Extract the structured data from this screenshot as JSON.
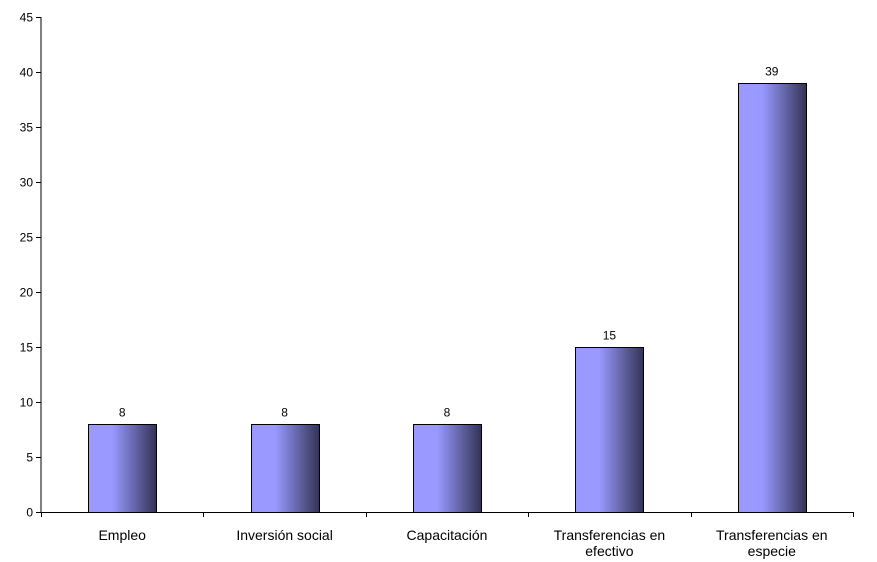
{
  "chart_data": {
    "type": "bar",
    "categories": [
      "Empleo",
      "Inversión social",
      "Capacitación",
      "Transferencias en efectivo",
      "Transferencias en especie"
    ],
    "category_lines": [
      [
        "Empleo"
      ],
      [
        "Inversión social"
      ],
      [
        "Capacitación"
      ],
      [
        "Transferencias en",
        "efectivo"
      ],
      [
        "Transferencias en",
        "especie"
      ]
    ],
    "values": [
      8,
      8,
      8,
      15,
      39
    ],
    "data_labels": [
      "8",
      "8",
      "8",
      "15",
      "39"
    ],
    "title": "",
    "xlabel": "",
    "ylabel": "",
    "ylim": [
      0,
      45
    ],
    "yticks": [
      0,
      5,
      10,
      15,
      20,
      25,
      30,
      35,
      40,
      45
    ],
    "ytick_labels": [
      "0",
      "5",
      "10",
      "15",
      "20",
      "25",
      "30",
      "35",
      "40",
      "45"
    ],
    "grid": false,
    "legend": "none",
    "colors": {
      "bar_light": "#9999ff",
      "bar_dark": "#333355",
      "axis": "#000000"
    }
  }
}
